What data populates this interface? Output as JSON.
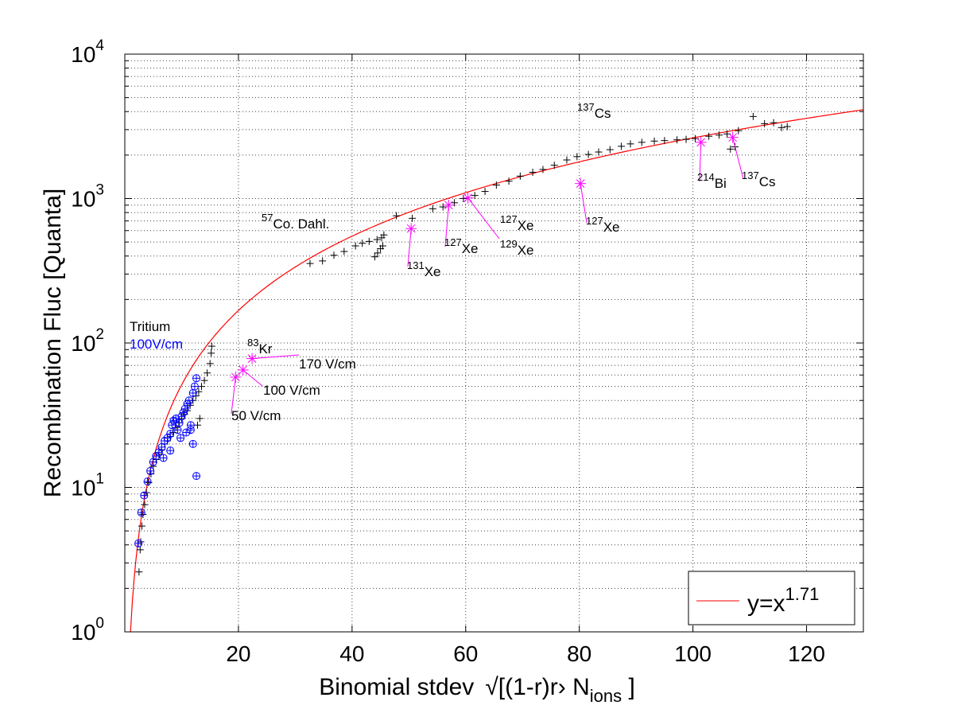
{
  "chart_data": {
    "type": "scatter",
    "xlabel": "Binomial stdev",
    "xlabel_math": "√[(1-r)r› N",
    "xlabel_sub": "ions",
    "xlabel_end": " ]",
    "ylabel": "Recombination Fluc [Quanta]",
    "xlim": [
      0,
      130
    ],
    "ylim": [
      1,
      10000
    ],
    "yscale": "log",
    "grid": true,
    "x_ticks": [
      "20",
      "40",
      "60",
      "80",
      "100",
      "120"
    ],
    "y_ticks": [
      {
        "base": "10",
        "exp": "0",
        "value": 1
      },
      {
        "base": "10",
        "exp": "1",
        "value": 10
      },
      {
        "base": "10",
        "exp": "2",
        "value": 100
      },
      {
        "base": "10",
        "exp": "3",
        "value": 1000
      },
      {
        "base": "10",
        "exp": "4",
        "value": 10000
      }
    ],
    "legend": {
      "position": "bottom-right",
      "entries": [
        {
          "text": "y=x",
          "sup": "1.71",
          "color": "#ff0000"
        }
      ]
    },
    "fit_curve": {
      "exponent": 1.71,
      "color": "#ff0000"
    },
    "series": [
      {
        "marker": "plus",
        "color": "#000000",
        "points": [
          [
            2.5,
            2.6
          ],
          [
            2.7,
            3.7
          ],
          [
            2.8,
            4.2
          ],
          [
            3.0,
            5.4
          ],
          [
            3.2,
            6.5
          ],
          [
            3.5,
            7.6
          ],
          [
            3.8,
            9.2
          ],
          [
            4.2,
            10.8
          ],
          [
            4.6,
            12.4
          ],
          [
            5.0,
            14.0
          ],
          [
            5.5,
            15.6
          ],
          [
            6.0,
            17.0
          ],
          [
            6.5,
            18.2
          ],
          [
            7.0,
            20.0
          ],
          [
            7.5,
            21.0
          ],
          [
            8.0,
            22.5
          ],
          [
            8.5,
            24.0
          ],
          [
            9.0,
            26.0
          ],
          [
            9.5,
            28.0
          ],
          [
            10.0,
            30.0
          ],
          [
            10.5,
            32.0
          ],
          [
            11.0,
            34.0
          ],
          [
            11.5,
            37.0
          ],
          [
            12.0,
            40.0
          ],
          [
            12.5,
            43.0
          ],
          [
            13.0,
            46.0
          ],
          [
            13.5,
            50.0
          ],
          [
            14.0,
            55.0
          ],
          [
            14.5,
            62.0
          ],
          [
            15.0,
            72.0
          ],
          [
            15.2,
            85.0
          ],
          [
            15.3,
            95.0
          ],
          [
            13.2,
            30.0
          ],
          [
            12.8,
            27.0
          ],
          [
            32.6,
            355
          ],
          [
            34.8,
            370
          ],
          [
            36.8,
            405
          ],
          [
            38.6,
            430
          ],
          [
            40.6,
            470
          ],
          [
            41.8,
            490
          ],
          [
            43.0,
            505
          ],
          [
            44.4,
            520
          ],
          [
            45.2,
            535
          ],
          [
            45.6,
            560
          ],
          [
            44.0,
            395
          ],
          [
            44.5,
            420
          ],
          [
            45.0,
            450
          ],
          [
            45.4,
            470
          ],
          [
            47.8,
            760
          ],
          [
            50.6,
            730
          ],
          [
            54.2,
            850
          ],
          [
            56.0,
            875
          ],
          [
            58.0,
            935
          ],
          [
            59.6,
            1000
          ],
          [
            61.6,
            1050
          ],
          [
            63.4,
            1120
          ],
          [
            65.4,
            1240
          ],
          [
            67.6,
            1320
          ],
          [
            69.6,
            1430
          ],
          [
            71.8,
            1520
          ],
          [
            73.6,
            1590
          ],
          [
            75.6,
            1700
          ],
          [
            77.8,
            1850
          ],
          [
            79.6,
            1950
          ],
          [
            81.6,
            2020
          ],
          [
            83.4,
            2100
          ],
          [
            85.4,
            2180
          ],
          [
            87.4,
            2300
          ],
          [
            89.0,
            2390
          ],
          [
            91.0,
            2450
          ],
          [
            93.2,
            2500
          ],
          [
            95.0,
            2520
          ],
          [
            97.2,
            2550
          ],
          [
            98.8,
            2570
          ],
          [
            100.4,
            2600
          ],
          [
            102.8,
            2700
          ],
          [
            104.6,
            2750
          ],
          [
            106.0,
            2800
          ],
          [
            106.6,
            2200
          ],
          [
            107.4,
            2280
          ],
          [
            108.0,
            2950
          ],
          [
            110.6,
            3700
          ],
          [
            112.6,
            3300
          ],
          [
            114.2,
            3350
          ],
          [
            115.6,
            3100
          ],
          [
            116.6,
            3150
          ]
        ]
      },
      {
        "marker": "circle-plus",
        "color": "#0000ff",
        "points": [
          [
            2.4,
            4.1
          ],
          [
            2.9,
            6.7
          ],
          [
            3.4,
            8.8
          ],
          [
            4.0,
            11.0
          ],
          [
            4.5,
            13.0
          ],
          [
            5.0,
            15.0
          ],
          [
            5.5,
            16.5
          ],
          [
            6.0,
            17.5
          ],
          [
            6.5,
            19.0
          ],
          [
            7.0,
            21.0
          ],
          [
            7.5,
            22.0
          ],
          [
            8.0,
            23.5
          ],
          [
            8.3,
            27.0
          ],
          [
            8.6,
            29.0
          ],
          [
            9.0,
            30.0
          ],
          [
            9.3,
            25.0
          ],
          [
            9.6,
            28.0
          ],
          [
            10.0,
            31.0
          ],
          [
            10.3,
            33.0
          ],
          [
            10.6,
            35.0
          ],
          [
            11.0,
            38.0
          ],
          [
            11.3,
            40.0
          ],
          [
            11.6,
            27.0
          ],
          [
            12.0,
            45.0
          ],
          [
            12.3,
            50.0
          ],
          [
            12.6,
            57.0
          ],
          [
            12.0,
            20.0
          ],
          [
            11.6,
            25.0
          ],
          [
            12.6,
            12.0
          ],
          [
            8.0,
            18.0
          ],
          [
            6.8,
            16.0
          ],
          [
            9.8,
            22.0
          ],
          [
            10.8,
            24.0
          ]
        ]
      },
      {
        "marker": "asterisk",
        "color": "#ff00ff",
        "points": [
          [
            19.5,
            58
          ],
          [
            20.8,
            65
          ],
          [
            22.4,
            78
          ],
          [
            50.4,
            620
          ],
          [
            57.0,
            900
          ],
          [
            60.4,
            1010
          ],
          [
            80.2,
            1270
          ],
          [
            101.4,
            2450
          ],
          [
            107.0,
            2650
          ]
        ]
      }
    ],
    "annotations": [
      {
        "text": "Tritium",
        "color": "#000000"
      },
      {
        "text": "100V/cm",
        "color": "#0000ff"
      },
      {
        "sup": "83",
        "text": "Kr"
      },
      {
        "text": "170 V/cm"
      },
      {
        "text": "100 V/cm"
      },
      {
        "text": "50 V/cm"
      },
      {
        "sup": "57",
        "text": "Co. Dahl."
      },
      {
        "sup": "131",
        "text": "Xe"
      },
      {
        "sup": "127",
        "text": "Xe"
      },
      {
        "sup": "127",
        "text": "Xe"
      },
      {
        "sup": "129",
        "text": "Xe"
      },
      {
        "sup": "127",
        "text": "Xe"
      },
      {
        "sup": "137",
        "text": "Cs"
      },
      {
        "sup": "214",
        "text": "Bi"
      },
      {
        "sup": "137",
        "text": "Cs"
      }
    ]
  }
}
